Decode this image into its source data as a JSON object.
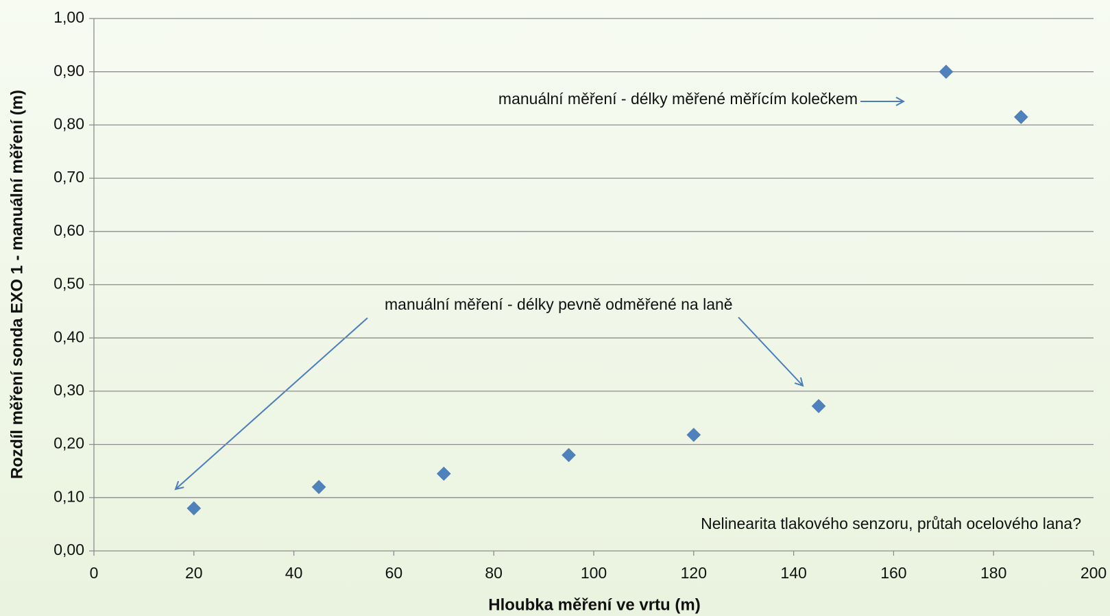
{
  "chart_data": {
    "type": "scatter",
    "xlabel": "Hloubka měření ve vrtu (m)",
    "ylabel": "Rozdíl měření sonda EXO 1 - manuální měření (m)",
    "x": [
      20,
      45,
      70,
      95,
      120,
      145,
      170.5,
      185.5
    ],
    "values": [
      0.08,
      0.12,
      0.145,
      0.18,
      0.218,
      0.272,
      0.9,
      0.815
    ],
    "color": "#4f81bd",
    "xlim": [
      0,
      200
    ],
    "xticks": [
      0,
      20,
      40,
      60,
      80,
      100,
      120,
      140,
      160,
      180,
      200
    ],
    "ylim": [
      0,
      1
    ],
    "yticks": [
      {
        "value": 0,
        "label": "0,00"
      },
      {
        "value": 0.1,
        "label": "0,10"
      },
      {
        "value": 0.2,
        "label": "0,20"
      },
      {
        "value": 0.3,
        "label": "0,30"
      },
      {
        "value": 0.4,
        "label": "0,40"
      },
      {
        "value": 0.5,
        "label": "0,50"
      },
      {
        "value": 0.6,
        "label": "0,60"
      },
      {
        "value": 0.7,
        "label": "0,70"
      },
      {
        "value": 0.8,
        "label": "0,80"
      },
      {
        "value": 0.9,
        "label": "0,90"
      },
      {
        "value": 1,
        "label": "1,00"
      }
    ],
    "grid": true,
    "annotations": [
      "manuální měření - délky měřené měřícím kolečkem",
      "manuální měření - délky pevně odměřené na laně",
      "Nelinearita tlakového senzoru, průtah ocelového lana?"
    ]
  }
}
